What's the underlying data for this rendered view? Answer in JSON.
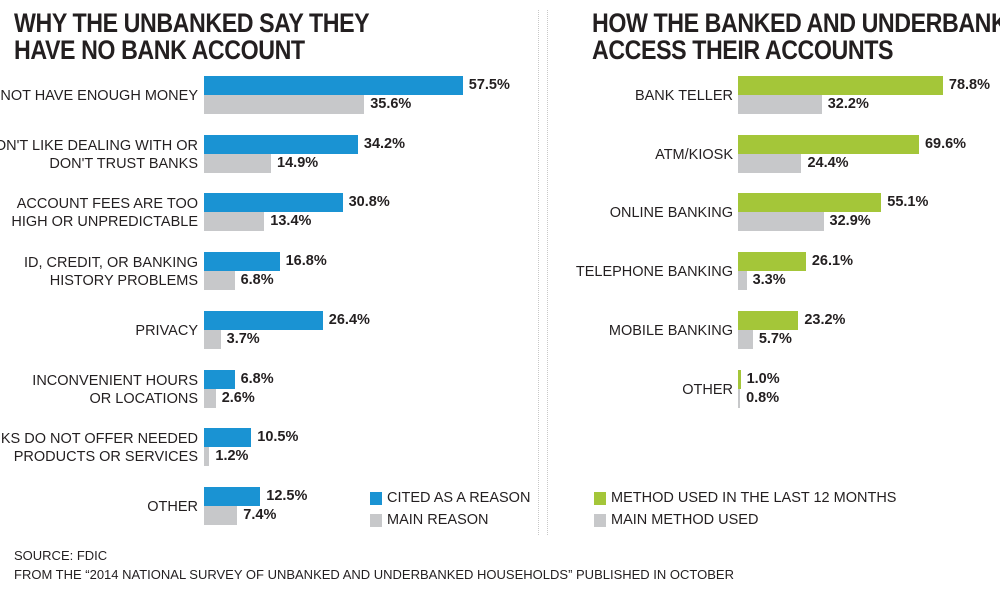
{
  "chart_data": [
    {
      "type": "bar",
      "orientation": "horizontal",
      "title_lines": [
        "WHY THE UNBANKED SAY THEY",
        "HAVE NO BANK ACCOUNT"
      ],
      "categories": [
        [
          "DO NOT HAVE ENOUGH MONEY"
        ],
        [
          "DON'T LIKE DEALING WITH OR",
          "DON'T TRUST BANKS"
        ],
        [
          "ACCOUNT FEES ARE TOO",
          "HIGH OR UNPREDICTABLE"
        ],
        [
          "ID, CREDIT, OR BANKING",
          "HISTORY PROBLEMS"
        ],
        [
          "PRIVACY"
        ],
        [
          "INCONVENIENT HOURS",
          "OR LOCATIONS"
        ],
        [
          "BANKS DO NOT OFFER NEEDED",
          "PRODUCTS OR SERVICES"
        ],
        [
          "OTHER"
        ]
      ],
      "series": [
        {
          "name": "CITED AS A REASON",
          "color": "#1a93d3",
          "values": [
            57.5,
            34.2,
            30.8,
            16.8,
            26.4,
            6.8,
            10.5,
            12.5
          ]
        },
        {
          "name": "MAIN REASON",
          "color": "#c7c8ca",
          "values": [
            35.6,
            14.9,
            13.4,
            6.8,
            3.7,
            2.6,
            1.2,
            7.4
          ]
        }
      ],
      "value_suffix": "%",
      "xlim": [
        0,
        100
      ]
    },
    {
      "type": "bar",
      "orientation": "horizontal",
      "title_lines": [
        "HOW THE BANKED AND UNDERBANKED",
        "ACCESS THEIR ACCOUNTS"
      ],
      "categories": [
        [
          "BANK TELLER"
        ],
        [
          "ATM/KIOSK"
        ],
        [
          "ONLINE BANKING"
        ],
        [
          "TELEPHONE BANKING"
        ],
        [
          "MOBILE BANKING"
        ],
        [
          "OTHER"
        ]
      ],
      "series": [
        {
          "name": "METHOD USED IN THE LAST 12 MONTHS",
          "color": "#a4c639",
          "values": [
            78.8,
            69.6,
            55.1,
            26.1,
            23.2,
            1.0
          ]
        },
        {
          "name": "MAIN METHOD USED",
          "color": "#c7c8ca",
          "values": [
            32.2,
            24.4,
            32.9,
            3.3,
            5.7,
            0.8
          ]
        }
      ],
      "value_suffix": "%",
      "xlim": [
        0,
        100
      ]
    }
  ],
  "source": {
    "line1": "SOURCE: FDIC",
    "line2": "FROM THE “2014 NATIONAL SURVEY OF UNBANKED AND UNDERBANKED HOUSEHOLDS” PUBLISHED IN OCTOBER"
  }
}
